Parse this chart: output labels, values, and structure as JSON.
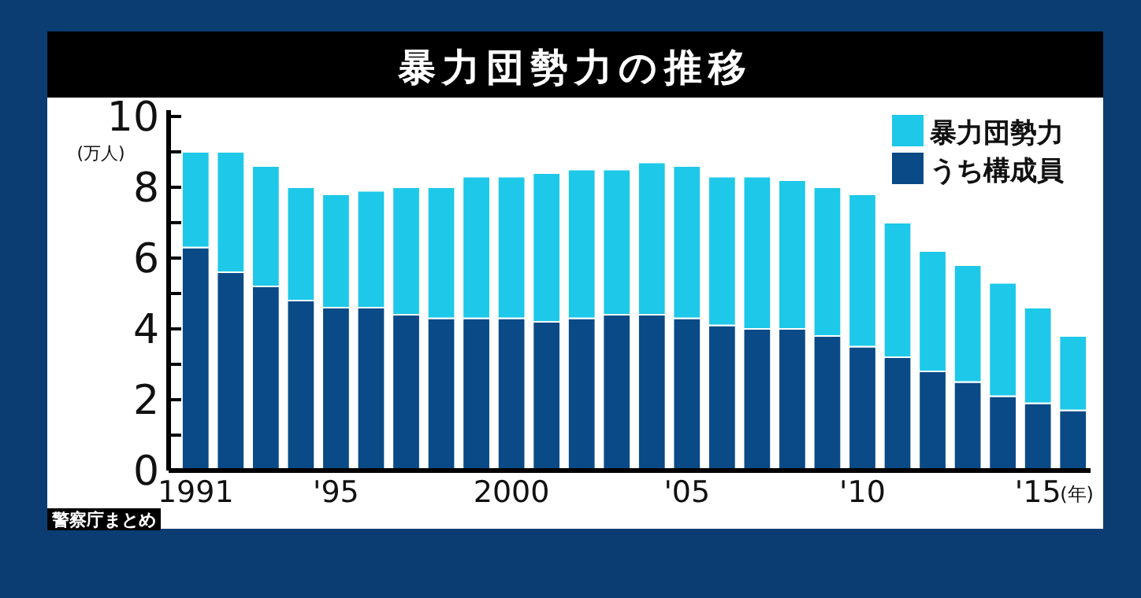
{
  "chart_data": {
    "type": "bar",
    "title": "暴力団勢力の推移",
    "ylabel": "(万人)",
    "xlabel": "(年)",
    "annotations": [
      "警察庁まとめ"
    ],
    "categories": [
      "1991",
      null,
      null,
      null,
      "'95",
      null,
      null,
      null,
      null,
      "2000",
      null,
      null,
      null,
      null,
      "'05",
      null,
      null,
      null,
      null,
      "'10",
      null,
      null,
      null,
      null,
      "'15",
      null
    ],
    "stacked": true,
    "series": [
      {
        "name": "うち構成員",
        "color": "#0a4a86",
        "values": [
          6.3,
          5.6,
          5.2,
          4.8,
          4.6,
          4.6,
          4.4,
          4.3,
          4.3,
          4.3,
          4.2,
          4.3,
          4.4,
          4.4,
          4.3,
          4.1,
          4.0,
          4.0,
          3.8,
          3.5,
          3.2,
          2.8,
          2.5,
          2.1,
          1.9,
          1.7
        ]
      },
      {
        "name": "暴力団勢力",
        "color": "#1ec8e8",
        "values": [
          2.7,
          3.4,
          3.4,
          3.2,
          3.2,
          3.3,
          3.6,
          3.7,
          4.0,
          4.0,
          4.2,
          4.2,
          4.1,
          4.3,
          4.3,
          4.2,
          4.3,
          4.2,
          4.2,
          4.3,
          3.8,
          3.4,
          3.3,
          3.2,
          2.7,
          2.1
        ]
      }
    ],
    "ylim": [
      0,
      10
    ],
    "yticks": [
      0,
      {
        "value": 1,
        "label": null
      },
      2,
      {
        "value": 3,
        "label": null
      },
      4,
      {
        "value": 5,
        "label": null
      },
      6,
      {
        "value": 7,
        "label": null
      },
      8,
      {
        "value": 9,
        "label": null
      },
      10
    ],
    "legend": "top right",
    "grid": false
  }
}
